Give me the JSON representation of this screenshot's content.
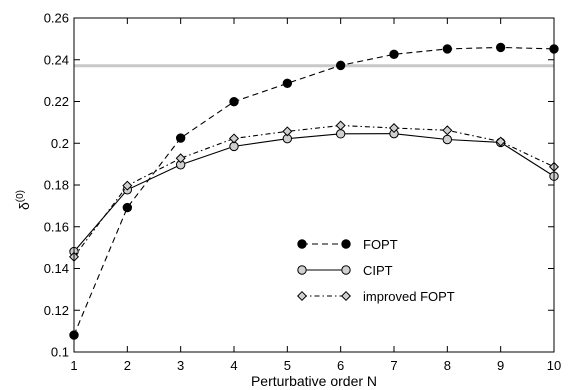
{
  "chart_data": {
    "type": "line",
    "title": "",
    "xlabel": "Perturbative order N",
    "ylabel": "δ(0)",
    "xlim": [
      1,
      10
    ],
    "ylim": [
      0.1,
      0.26
    ],
    "xticks": [
      1,
      2,
      3,
      4,
      5,
      6,
      7,
      8,
      9,
      10
    ],
    "yticks": [
      0.1,
      0.12,
      0.14,
      0.16,
      0.18,
      0.2,
      0.22,
      0.24,
      0.26
    ],
    "ytick_labels": [
      "0.1",
      "0.12",
      "0.14",
      "0.16",
      "0.18",
      "0.2",
      "0.22",
      "0.24",
      "0.26"
    ],
    "reference_line": {
      "y": 0.2371,
      "color": "#c8c8c8"
    },
    "legend_position": "center-right",
    "x": [
      1,
      2,
      3,
      4,
      5,
      6,
      7,
      8,
      9,
      10
    ],
    "series": [
      {
        "name": "FOPT",
        "values": [
          0.1081,
          0.1692,
          0.2025,
          0.2199,
          0.2287,
          0.2373,
          0.2426,
          0.2452,
          0.2459,
          0.2452
        ],
        "marker": "filled-circle",
        "line": "dashed"
      },
      {
        "name": "CIPT",
        "values": [
          0.1481,
          0.1777,
          0.1897,
          0.1985,
          0.2022,
          0.2045,
          0.2046,
          0.2018,
          0.2004,
          0.1842
        ],
        "marker": "gray-circle",
        "line": "solid"
      },
      {
        "name": "improved FOPT",
        "values": [
          0.1456,
          0.1797,
          0.1928,
          0.2023,
          0.2057,
          0.2085,
          0.2073,
          0.2062,
          0.2008,
          0.1887
        ],
        "marker": "diamond",
        "line": "dash-dot"
      }
    ]
  }
}
